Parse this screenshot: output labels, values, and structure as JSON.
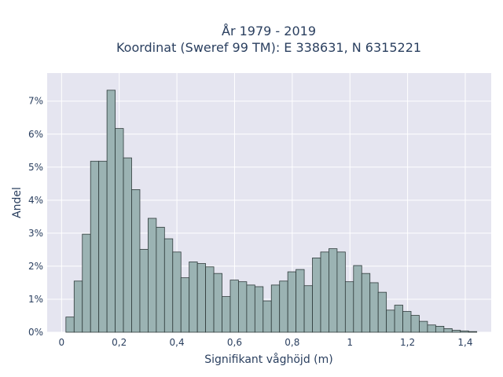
{
  "chart_data": {
    "type": "bar",
    "title": "År 1979 - 2019",
    "subtitle": "Koordinat (Sweref 99 TM): E 338631, N 6315221",
    "xlabel": "Signifikant våghöjd (m)",
    "ylabel": "Andel",
    "xlim": [
      -0.05,
      1.49
    ],
    "ylim": [
      0,
      0.0785
    ],
    "x_ticks": [
      0,
      0.2,
      0.4,
      0.6,
      0.8,
      1.0,
      1.2,
      1.4
    ],
    "x_tick_labels": [
      "0",
      "0,2",
      "0,4",
      "0,6",
      "0,8",
      "1",
      "1,2",
      "1,4"
    ],
    "y_ticks": [
      0,
      0.01,
      0.02,
      0.03,
      0.04,
      0.05,
      0.06,
      0.07
    ],
    "y_tick_labels": [
      "0%",
      "1%",
      "2%",
      "3%",
      "4%",
      "5%",
      "6%",
      "7%"
    ],
    "bin_width": 0.0285,
    "bin_start": 0.015,
    "values": [
      0.0046,
      0.0155,
      0.0297,
      0.0518,
      0.0518,
      0.0733,
      0.0617,
      0.0528,
      0.0432,
      0.0251,
      0.0345,
      0.0318,
      0.0283,
      0.0243,
      0.0165,
      0.0213,
      0.0208,
      0.0198,
      0.0178,
      0.0108,
      0.0158,
      0.0153,
      0.0143,
      0.0138,
      0.0095,
      0.0143,
      0.0155,
      0.0183,
      0.019,
      0.0141,
      0.0225,
      0.0243,
      0.0253,
      0.0243,
      0.0153,
      0.0202,
      0.0178,
      0.015,
      0.0121,
      0.0067,
      0.0082,
      0.0063,
      0.0051,
      0.0033,
      0.0022,
      0.0018,
      0.0011,
      0.0006,
      0.0004,
      0.0002
    ],
    "grid": true,
    "colors": {
      "bar_fill": "#9bb3b3",
      "bar_stroke": "#2f3b3b",
      "plot_background": "#e5e5f0",
      "grid": "#ffffff",
      "text": "#2a3f5f"
    }
  }
}
